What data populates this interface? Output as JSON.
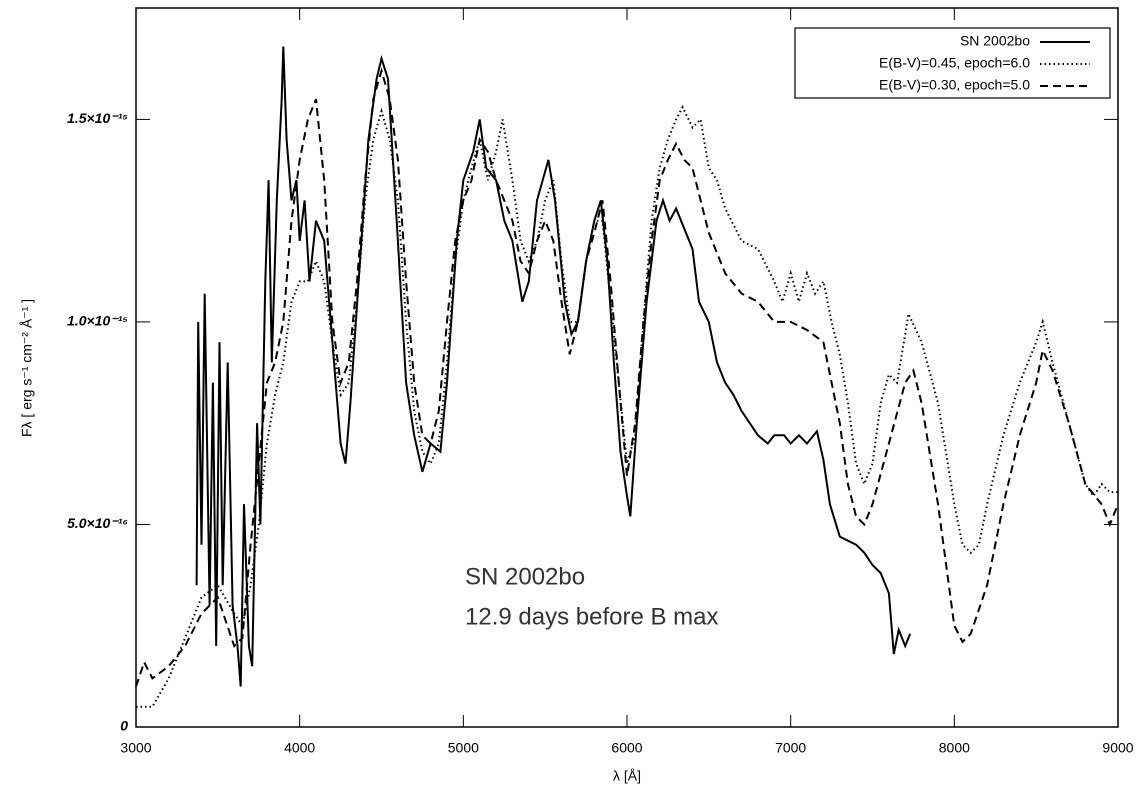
{
  "chart_data": {
    "type": "line",
    "xlabel": "λ [Å]",
    "ylabel": "Fλ [ erg s⁻¹ cm⁻² Å⁻¹ ]",
    "annotations": [
      "SN 2002bo",
      "12.9 days before B max"
    ],
    "xlim": [
      3000,
      9000
    ],
    "xticks": [
      3000,
      4000,
      5000,
      6000,
      7000,
      8000,
      9000
    ],
    "ylim": [
      0,
      1.775e-15
    ],
    "yticks": [
      0,
      {
        "value": 5e-16,
        "label": "5.0×10⁻¹⁶"
      },
      {
        "value": 1e-15,
        "label": "1.0×10⁻¹⁵"
      },
      {
        "value": 1.5e-15,
        "label": "1.5×10⁻¹⁵"
      }
    ],
    "legend": "upper right",
    "series": [
      {
        "name": "SN 2002bo",
        "color": "#000000",
        "dash": "solid",
        "x": [
          3370,
          3380,
          3400,
          3420,
          3450,
          3470,
          3490,
          3510,
          3530,
          3560,
          3590,
          3620,
          3640,
          3660,
          3690,
          3710,
          3740,
          3760,
          3790,
          3810,
          3830,
          3860,
          3890,
          3900,
          3920,
          3950,
          3980,
          4000,
          4030,
          4060,
          4100,
          4150,
          4200,
          4250,
          4280,
          4310,
          4360,
          4420,
          4470,
          4500,
          4540,
          4600,
          4650,
          4700,
          4750,
          4800,
          4860,
          4900,
          4960,
          5000,
          5060,
          5100,
          5140,
          5200,
          5250,
          5300,
          5360,
          5400,
          5450,
          5520,
          5560,
          5620,
          5660,
          5700,
          5750,
          5800,
          5840,
          5880,
          5920,
          5960,
          6000,
          6020,
          6060,
          6120,
          6180,
          6220,
          6260,
          6300,
          6350,
          6400,
          6440,
          6500,
          6550,
          6600,
          6650,
          6700,
          6750,
          6800,
          6860,
          6900,
          6960,
          7000,
          7050,
          7100,
          7160,
          7200,
          7240,
          7300,
          7350,
          7400,
          7450,
          7500,
          7550,
          7600,
          7630,
          7660,
          7700,
          7730
        ],
        "values": [
          3.5e-16,
          1e-15,
          4.5e-16,
          1.07e-15,
          3e-16,
          8.5e-16,
          2e-16,
          9.5e-16,
          3.5e-16,
          9e-16,
          3e-16,
          2e-16,
          1e-16,
          5.5e-16,
          2e-16,
          1.5e-16,
          7.5e-16,
          5e-16,
          1.1e-15,
          1.35e-15,
          9e-16,
          1.3e-15,
          1.55e-15,
          1.68e-15,
          1.45e-15,
          1.3e-15,
          1.35e-15,
          1.2e-15,
          1.3e-15,
          1.1e-15,
          1.25e-15,
          1.2e-15,
          9.5e-16,
          7e-16,
          6.5e-16,
          8e-16,
          1.1e-15,
          1.45e-15,
          1.6e-15,
          1.65e-15,
          1.6e-15,
          1.2e-15,
          8.5e-16,
          7.2e-16,
          6.3e-16,
          7e-16,
          6.8e-16,
          8.5e-16,
          1.2e-15,
          1.35e-15,
          1.42e-15,
          1.5e-15,
          1.38e-15,
          1.35e-15,
          1.25e-15,
          1.2e-15,
          1.05e-15,
          1.1e-15,
          1.3e-15,
          1.4e-15,
          1.3e-15,
          1.05e-15,
          9.7e-16,
          1e-15,
          1.15e-15,
          1.25e-15,
          1.3e-15,
          1.15e-15,
          9e-16,
          6.8e-16,
          5.7e-16,
          5.2e-16,
          7.5e-16,
          1.05e-15,
          1.25e-15,
          1.3e-15,
          1.25e-15,
          1.28e-15,
          1.23e-15,
          1.18e-15,
          1.05e-15,
          1e-15,
          9e-16,
          8.5e-16,
          8.2e-16,
          7.8e-16,
          7.5e-16,
          7.2e-16,
          7e-16,
          7.2e-16,
          7.2e-16,
          7e-16,
          7.2e-16,
          7e-16,
          7.3e-16,
          6.6e-16,
          5.5e-16,
          4.7e-16,
          4.6e-16,
          4.5e-16,
          4.3e-16,
          4e-16,
          3.8e-16,
          3.3e-16,
          1.8e-16,
          2.4e-16,
          2e-16,
          2.3e-16
        ]
      },
      {
        "name": "E(B-V)=0.45, epoch=6.0",
        "color": "#000000",
        "dash": "dotted",
        "x": [
          3000,
          3100,
          3200,
          3300,
          3400,
          3500,
          3600,
          3650,
          3700,
          3750,
          3800,
          3850,
          3900,
          3950,
          4000,
          4050,
          4100,
          4150,
          4200,
          4250,
          4300,
          4350,
          4400,
          4450,
          4500,
          4550,
          4600,
          4650,
          4700,
          4750,
          4800,
          4850,
          4900,
          4950,
          5000,
          5050,
          5100,
          5150,
          5200,
          5240,
          5300,
          5350,
          5400,
          5450,
          5500,
          5550,
          5600,
          5650,
          5700,
          5750,
          5800,
          5850,
          5900,
          5950,
          6000,
          6050,
          6100,
          6150,
          6200,
          6250,
          6300,
          6340,
          6400,
          6450,
          6500,
          6550,
          6600,
          6700,
          6800,
          6900,
          6950,
          7000,
          7050,
          7100,
          7150,
          7200,
          7250,
          7300,
          7350,
          7400,
          7450,
          7500,
          7550,
          7600,
          7650,
          7700,
          7720,
          7800,
          7900,
          8000,
          8050,
          8100,
          8150,
          8200,
          8300,
          8400,
          8500,
          8540,
          8600,
          8700,
          8800,
          8850,
          8900,
          8950,
          9000
        ],
        "values": [
          5e-17,
          5e-17,
          1.2e-16,
          2.2e-16,
          3.2e-16,
          3.5e-16,
          2.8e-16,
          2.5e-16,
          3.5e-16,
          5e-16,
          7e-16,
          8.2e-16,
          9e-16,
          1.05e-15,
          1.1e-15,
          1.1e-15,
          1.15e-15,
          1.1e-15,
          9.5e-16,
          8.2e-16,
          8.5e-16,
          1.05e-15,
          1.3e-15,
          1.45e-15,
          1.52e-15,
          1.45e-15,
          1.3e-15,
          1e-15,
          7.8e-16,
          6.8e-16,
          6.5e-16,
          7e-16,
          9e-16,
          1.15e-15,
          1.3e-15,
          1.38e-15,
          1.45e-15,
          1.35e-15,
          1.42e-15,
          1.5e-15,
          1.35e-15,
          1.2e-15,
          1.15e-15,
          1.2e-15,
          1.3e-15,
          1.35e-15,
          1.15e-15,
          1e-15,
          1e-15,
          1.15e-15,
          1.25e-15,
          1.25e-15,
          1.05e-15,
          8.5e-16,
          6.5e-16,
          7.2e-16,
          1e-15,
          1.25e-15,
          1.38e-15,
          1.45e-15,
          1.5e-15,
          1.53e-15,
          1.48e-15,
          1.5e-15,
          1.38e-15,
          1.35e-15,
          1.28e-15,
          1.2e-15,
          1.18e-15,
          1.1e-15,
          1.05e-15,
          1.12e-15,
          1.05e-15,
          1.12e-15,
          1.07e-15,
          1.1e-15,
          1e-15,
          9.2e-16,
          8e-16,
          6.5e-16,
          6e-16,
          6.5e-16,
          8e-16,
          8.7e-16,
          8.5e-16,
          9.7e-16,
          1.02e-15,
          9.5e-16,
          8e-16,
          5.5e-16,
          4.5e-16,
          4.3e-16,
          4.5e-16,
          5.5e-16,
          7.2e-16,
          8.5e-16,
          9.5e-16,
          1e-15,
          9e-16,
          7.5e-16,
          6e-16,
          5.7e-16,
          6e-16,
          5.8e-16,
          5.8e-16
        ]
      },
      {
        "name": "E(B-V)=0.30, epoch=5.0",
        "color": "#000000",
        "dash": "dashed",
        "x": [
          3000,
          3050,
          3100,
          3200,
          3300,
          3400,
          3500,
          3600,
          3650,
          3700,
          3750,
          3800,
          3850,
          3900,
          3950,
          4000,
          4050,
          4100,
          4150,
          4200,
          4250,
          4300,
          4350,
          4400,
          4450,
          4500,
          4550,
          4600,
          4650,
          4700,
          4750,
          4800,
          4850,
          4900,
          4950,
          5000,
          5050,
          5100,
          5150,
          5200,
          5300,
          5350,
          5400,
          5450,
          5500,
          5550,
          5600,
          5650,
          5700,
          5750,
          5800,
          5850,
          5900,
          5950,
          6000,
          6050,
          6100,
          6150,
          6200,
          6250,
          6300,
          6350,
          6400,
          6450,
          6500,
          6600,
          6700,
          6800,
          6900,
          7000,
          7100,
          7200,
          7300,
          7350,
          7400,
          7450,
          7500,
          7600,
          7700,
          7750,
          7800,
          7900,
          8000,
          8050,
          8100,
          8200,
          8300,
          8400,
          8500,
          8540,
          8600,
          8700,
          8800,
          8900,
          8950,
          9000
        ],
        "values": [
          1e-16,
          1.6e-16,
          1.2e-16,
          1.5e-16,
          2e-16,
          2.8e-16,
          3.2e-16,
          2e-16,
          2.2e-16,
          4.5e-16,
          6.5e-16,
          8.5e-16,
          9e-16,
          1e-15,
          1.25e-15,
          1.4e-15,
          1.5e-15,
          1.55e-15,
          1.35e-15,
          1e-15,
          8.5e-16,
          9e-16,
          1.1e-15,
          1.35e-15,
          1.55e-15,
          1.62e-15,
          1.55e-15,
          1.4e-15,
          1.1e-15,
          8.5e-16,
          7.2e-16,
          7e-16,
          7.8e-16,
          1e-15,
          1.2e-15,
          1.3e-15,
          1.35e-15,
          1.45e-15,
          1.42e-15,
          1.35e-15,
          1.25e-15,
          1.15e-15,
          1.12e-15,
          1.2e-15,
          1.25e-15,
          1.2e-15,
          1.05e-15,
          9.2e-16,
          1e-15,
          1.15e-15,
          1.22e-15,
          1.3e-15,
          1.1e-15,
          8.5e-16,
          6.2e-16,
          7.5e-16,
          1e-15,
          1.2e-15,
          1.35e-15,
          1.4e-15,
          1.44e-15,
          1.4e-15,
          1.38e-15,
          1.3e-15,
          1.22e-15,
          1.12e-15,
          1.07e-15,
          1.05e-15,
          1e-15,
          1e-15,
          9.8e-16,
          9.5e-16,
          7.5e-16,
          6e-16,
          5.2e-16,
          5e-16,
          5.5e-16,
          7e-16,
          8.5e-16,
          8.8e-16,
          8e-16,
          5.5e-16,
          2.5e-16,
          2.1e-16,
          2.3e-16,
          3.5e-16,
          5.5e-16,
          7.2e-16,
          8.5e-16,
          9.3e-16,
          8.8e-16,
          7.5e-16,
          6e-16,
          5.5e-16,
          5e-16,
          5.5e-16
        ]
      }
    ]
  }
}
